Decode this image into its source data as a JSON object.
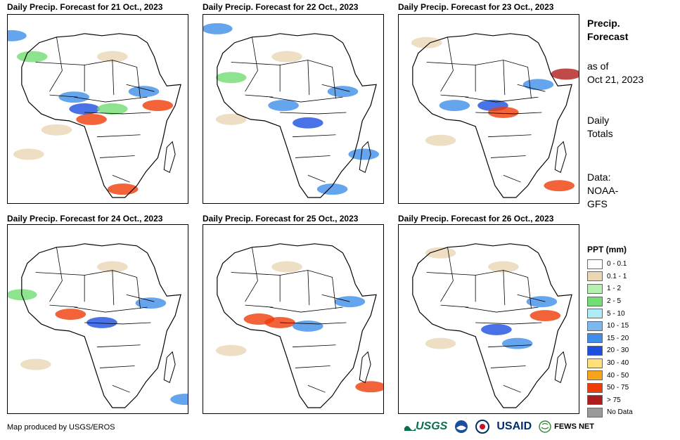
{
  "panels": [
    {
      "title": "Daily Precip. Forecast for 21 Oct., 2023"
    },
    {
      "title": "Daily Precip. Forecast for 22 Oct., 2023"
    },
    {
      "title": "Daily Precip. Forecast for 23 Oct., 2023"
    },
    {
      "title": "Daily Precip. Forecast for 24 Oct., 2023"
    },
    {
      "title": "Daily Precip. Forecast for 25 Oct., 2023"
    },
    {
      "title": "Daily Precip. Forecast for 26 Oct., 2023"
    }
  ],
  "sidebar": {
    "title_line1": "Precip.",
    "title_line2": "Forecast",
    "asof_line1": "as of",
    "asof_line2": "Oct 21, 2023",
    "totals_line1": "Daily",
    "totals_line2": "Totals",
    "data_line1": "Data:",
    "data_line2": "NOAA-",
    "data_line3": "GFS"
  },
  "legend": {
    "title": "PPT (mm)",
    "items": [
      {
        "label": "0 - 0.1",
        "color": "#ffffff"
      },
      {
        "label": "0.1 - 1",
        "color": "#ead7b5"
      },
      {
        "label": "1 - 2",
        "color": "#b5f0b0"
      },
      {
        "label": "2 - 5",
        "color": "#72dd72"
      },
      {
        "label": "5 - 10",
        "color": "#b0ecf5"
      },
      {
        "label": "10 - 15",
        "color": "#7ab8ef"
      },
      {
        "label": "15 - 20",
        "color": "#3f8eea"
      },
      {
        "label": "20 - 30",
        "color": "#1c4fe0"
      },
      {
        "label": "30 - 40",
        "color": "#fde07c"
      },
      {
        "label": "40 - 50",
        "color": "#f8a418"
      },
      {
        "label": "50 - 75",
        "color": "#ef3c08"
      },
      {
        "label": "> 75",
        "color": "#b01c1c"
      },
      {
        "label": "No Data",
        "color": "#9a9a9a"
      }
    ]
  },
  "footer": {
    "credit": "Map produced by USGS/EROS",
    "logos": {
      "usgs": "USGS",
      "usaid": "USAID",
      "fews": "FEWS NET"
    }
  }
}
